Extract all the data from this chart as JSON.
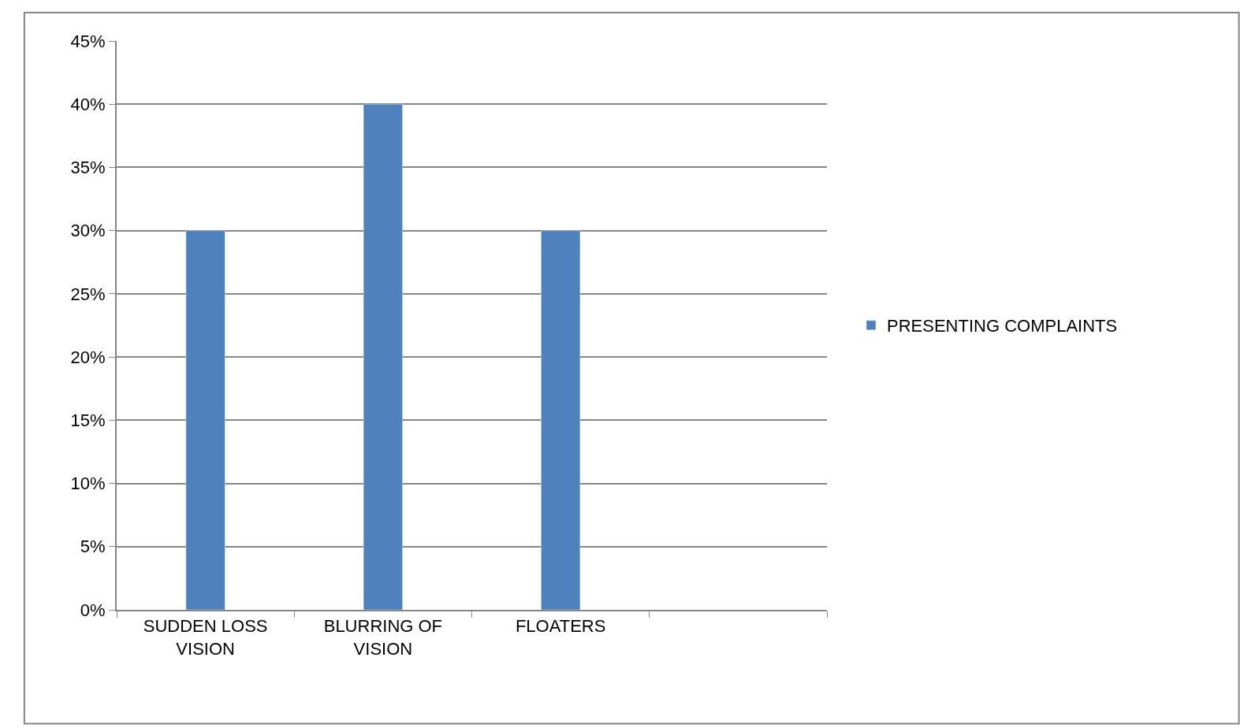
{
  "chart_data": {
    "type": "bar",
    "categories": [
      "SUDDEN LOSS VISION",
      "BLURRING OF VISION",
      "FLOATERS",
      null
    ],
    "series": [
      {
        "name": "PRESENTING COMPLAINTS",
        "color": "#4f81bd",
        "values": [
          30,
          40,
          30,
          null
        ]
      }
    ],
    "ylim": [
      0,
      45
    ],
    "yticks": [
      {
        "value": 0,
        "label": "0%"
      },
      {
        "value": 5,
        "label": "5%"
      },
      {
        "value": 10,
        "label": "10%"
      },
      {
        "value": 15,
        "label": "15%"
      },
      {
        "value": 20,
        "label": "20%"
      },
      {
        "value": 25,
        "label": "25%"
      },
      {
        "value": 30,
        "label": "30%"
      },
      {
        "value": 35,
        "label": "35%"
      },
      {
        "value": 40,
        "label": "40%"
      },
      {
        "value": 45,
        "label": "45%"
      }
    ],
    "grid": "y",
    "legend": "right"
  }
}
